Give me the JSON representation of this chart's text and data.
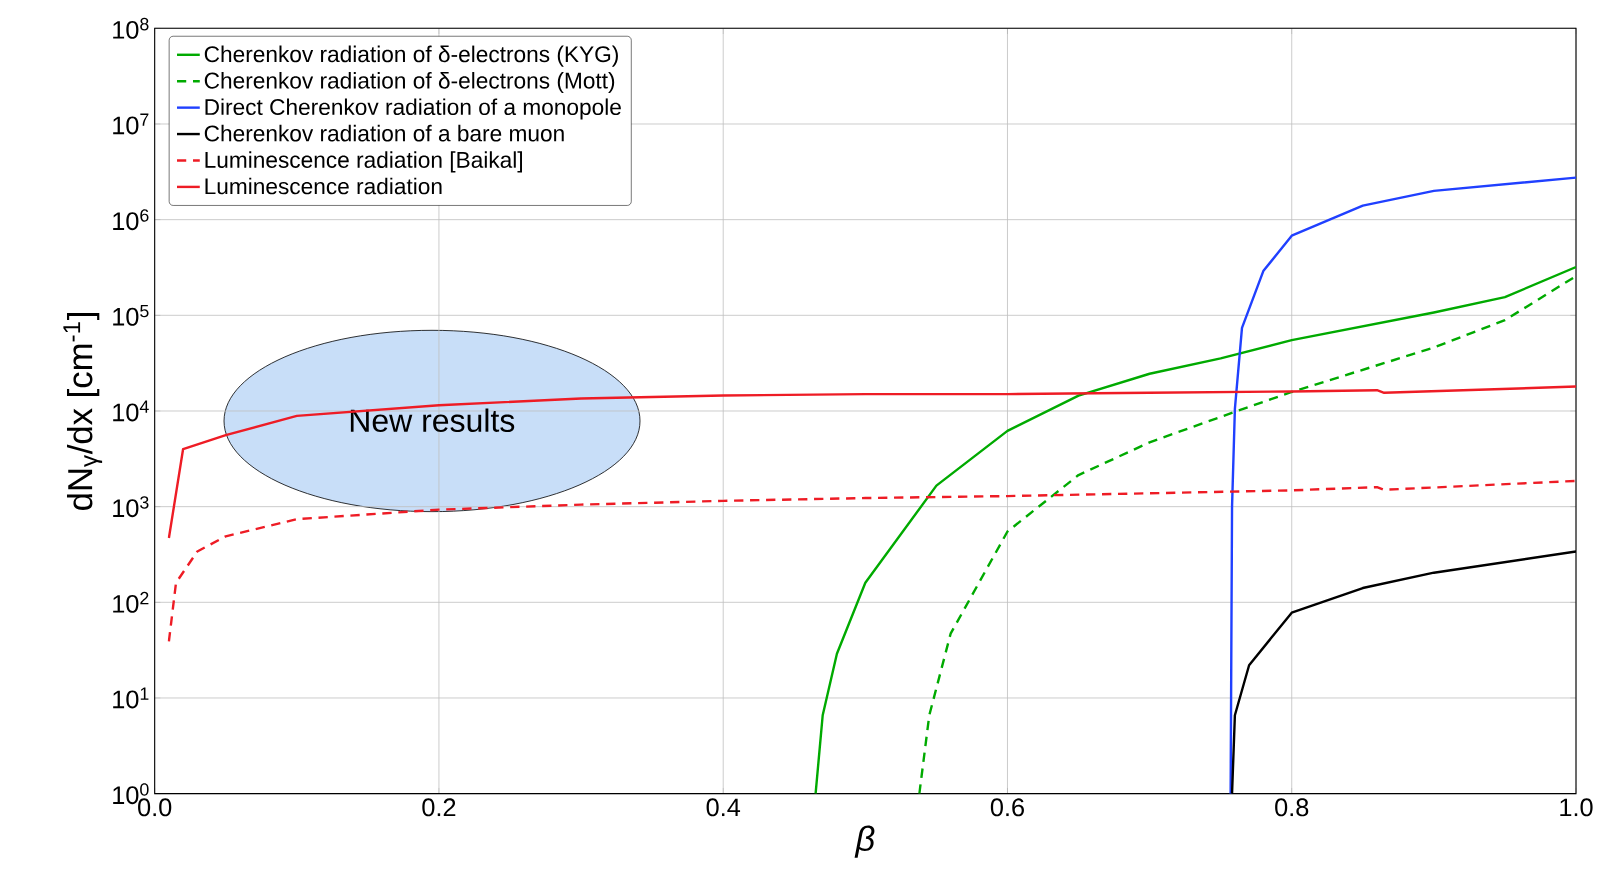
{
  "chart_data": {
    "type": "line",
    "xlabel": "β",
    "ylabel": "dN$_{γ}$/dx [cm$^{-1}$]",
    "log": "y",
    "grid": true,
    "legend": "top left",
    "marker": "none",
    "xlim": [
      0,
      1
    ],
    "ylim": [
      1,
      100000000
    ],
    "xticks": [
      {
        "value": 0,
        "label": "0.0"
      },
      {
        "value": 0.2,
        "label": "0.2"
      },
      {
        "value": 0.4,
        "label": "0.4"
      },
      {
        "value": 0.6,
        "label": "0.6"
      },
      {
        "value": 0.8,
        "label": "0.8"
      },
      {
        "value": 1,
        "label": "1.0"
      }
    ],
    "yticks": [
      {
        "value": 1,
        "label": "10$^{0}$"
      },
      {
        "value": 10,
        "label": "10$^{1}$"
      },
      {
        "value": 100,
        "label": "10$^{2}$"
      },
      {
        "value": 1000,
        "label": "10$^{3}$"
      },
      {
        "value": 10000,
        "label": "10$^{4}$"
      },
      {
        "value": 100000,
        "label": "10$^{5}$"
      },
      {
        "value": 1000000,
        "label": "10$^{6}$"
      },
      {
        "value": 10000000,
        "label": "10$^{7}$"
      },
      {
        "value": 100000000,
        "label": "10$^{8}$"
      }
    ],
    "annotations": [
      "New results"
    ],
    "series": [
      {
        "name": "Cherenkov radiation of δ-electrons (KYG)",
        "color": "#00aa00",
        "line_style": "solid",
        "x": [
          0.465,
          0.47,
          0.48,
          0.5,
          0.55,
          0.6,
          0.65,
          0.7,
          0.75,
          0.8,
          0.9,
          0.95,
          1.0
        ],
        "values": [
          1,
          6.6,
          29,
          160,
          1660,
          6200,
          14500,
          24500,
          35500,
          55000,
          107000,
          155000,
          320000
        ]
      },
      {
        "name": "Cherenkov radiation of δ-electrons (Mott)",
        "color": "#00aa00",
        "line_style": "dashed",
        "x": [
          0.538,
          0.545,
          0.56,
          0.6,
          0.65,
          0.7,
          0.76,
          0.8,
          0.9,
          0.95,
          1.0
        ],
        "values": [
          1,
          6.6,
          47,
          550,
          2140,
          4700,
          9800,
          15800,
          46000,
          89000,
          257000
        ]
      },
      {
        "name": "Direct Cherenkov radiation of a monopole",
        "color": "#2040ff",
        "line_style": "solid",
        "x": [
          0.757,
          0.758,
          0.76,
          0.765,
          0.78,
          0.8,
          0.85,
          0.9,
          1.0
        ],
        "values": [
          1,
          1000,
          10500,
          74000,
          290000,
          680000,
          1400000,
          2000000,
          2750000
        ]
      },
      {
        "name": "Cherenkov radiation of a bare muon",
        "color": "#000000",
        "line_style": "solid",
        "x": [
          0.758,
          0.76,
          0.77,
          0.8,
          0.85,
          0.9,
          1.0
        ],
        "values": [
          1,
          6.6,
          22,
          78,
          141,
          204,
          340
        ]
      },
      {
        "name": "Luminescence radiation [Baikal]",
        "color": "#ee1c25",
        "line_style": "dashed",
        "x": [
          0.01,
          0.015,
          0.03,
          0.05,
          0.1,
          0.2,
          0.3,
          0.4,
          0.5,
          0.6,
          0.7,
          0.8,
          0.86,
          0.865,
          1.0
        ],
        "values": [
          39,
          160,
          340,
          490,
          740,
          930,
          1050,
          1150,
          1230,
          1290,
          1380,
          1480,
          1600,
          1500,
          1860
        ]
      },
      {
        "name": "Luminescence radiation",
        "color": "#ee1c25",
        "line_style": "solid",
        "x": [
          0.01,
          0.02,
          0.05,
          0.1,
          0.2,
          0.3,
          0.4,
          0.5,
          0.6,
          0.7,
          0.8,
          0.86,
          0.865,
          1.0
        ],
        "values": [
          470,
          4000,
          5600,
          8900,
          11500,
          13500,
          14500,
          15000,
          15000,
          15500,
          16000,
          16500,
          15500,
          18000
        ]
      }
    ]
  }
}
